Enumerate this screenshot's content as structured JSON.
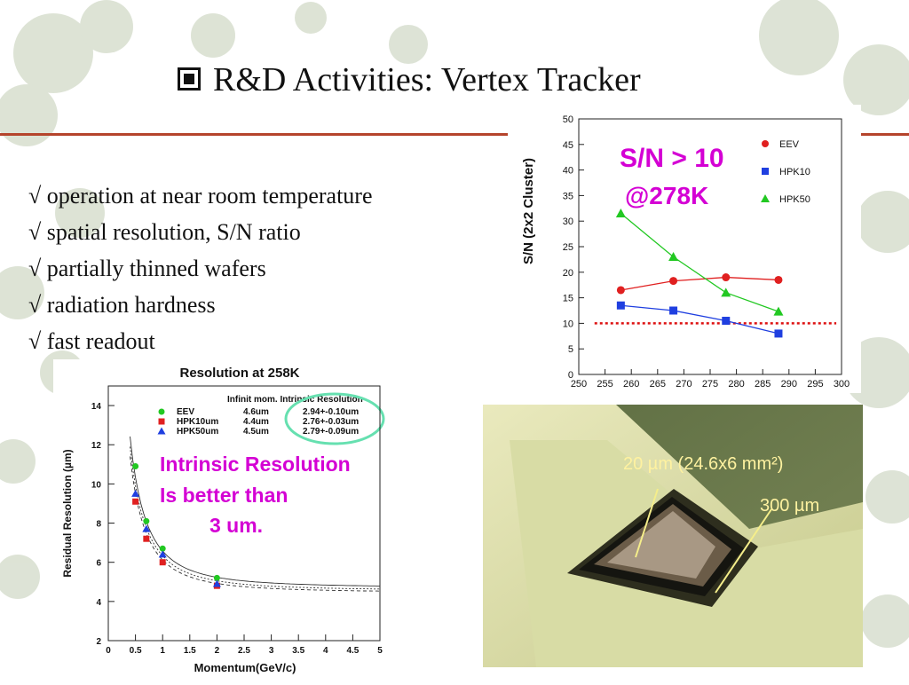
{
  "slide": {
    "title": "R&D Activities: Vertex Tracker",
    "bullets": [
      "√ operation at near room temperature",
      "√ spatial resolution, S/N ratio",
      "√ partially thinned wafers",
      "√ radiation hardness",
      "√ fast readout"
    ],
    "accent_color": "#b5442c"
  },
  "chart_data": [
    {
      "type": "line",
      "ylabel": "S/N (2x2 Cluster)",
      "xlabel": "",
      "x_ticks": [
        "250",
        "255",
        "260",
        "265",
        "270",
        "275",
        "280",
        "285",
        "290",
        "295",
        "300"
      ],
      "y_ticks": [
        "0",
        "5",
        "10",
        "15",
        "20",
        "25",
        "30",
        "35",
        "40",
        "45",
        "50"
      ],
      "xlim": [
        250,
        300
      ],
      "ylim": [
        0,
        50
      ],
      "annotation_line1": "S/N > 10",
      "annotation_line2": "@278K",
      "threshold": 10,
      "series": [
        {
          "name": "EEV",
          "color": "#e02020",
          "marker": "circle",
          "x": [
            258,
            268,
            278,
            288
          ],
          "values": [
            16.5,
            18.3,
            19.0,
            18.5
          ]
        },
        {
          "name": "HPK10",
          "color": "#1f3fe0",
          "marker": "square",
          "x": [
            258,
            268,
            278,
            288
          ],
          "values": [
            13.5,
            12.5,
            10.5,
            8.0
          ]
        },
        {
          "name": "HPK50",
          "color": "#22c822",
          "marker": "triangle",
          "x": [
            258,
            268,
            278,
            288
          ],
          "values": [
            31.5,
            23.0,
            16.0,
            12.3
          ]
        }
      ]
    },
    {
      "type": "scatter",
      "title": "Resolution at 258K",
      "xlabel": "Momentum(GeV/c)",
      "ylabel": "Residual Resolution (µm)",
      "x_ticks": [
        "0",
        "0.5",
        "1",
        "1.5",
        "2",
        "2.5",
        "3",
        "3.5",
        "4",
        "4.5",
        "5"
      ],
      "y_ticks": [
        "2",
        "4",
        "6",
        "8",
        "10",
        "12",
        "14"
      ],
      "xlim": [
        0,
        5
      ],
      "ylim": [
        2,
        15
      ],
      "legend_header": "Infinit mom. Intrinsic Resolution",
      "annotation_lines": [
        "Intrinsic Resolution",
        "Is better than",
        "3 um."
      ],
      "series": [
        {
          "name": "EEV",
          "infinite_mom": "4.6um",
          "intrinsic": "2.94+-0.10um",
          "color": "#22c822",
          "marker": "circle",
          "x": [
            0.5,
            0.7,
            1.0,
            2.0
          ],
          "values": [
            10.9,
            8.1,
            6.7,
            5.2
          ]
        },
        {
          "name": "HPK10um",
          "infinite_mom": "4.4um",
          "intrinsic": "2.76+-0.03um",
          "color": "#e02020",
          "marker": "square",
          "x": [
            0.5,
            0.7,
            1.0,
            2.0
          ],
          "values": [
            9.1,
            7.2,
            6.0,
            4.8
          ]
        },
        {
          "name": "HPK50um",
          "infinite_mom": "4.5um",
          "intrinsic": "2.79+-0.09um",
          "color": "#1f3fe0",
          "marker": "triangle",
          "x": [
            0.5,
            0.7,
            1.0,
            2.0
          ],
          "values": [
            9.5,
            7.7,
            6.4,
            4.9
          ]
        }
      ]
    }
  ],
  "photo": {
    "label1": "20 µm (24.6x6 mm²)",
    "label2": "300 µm"
  }
}
